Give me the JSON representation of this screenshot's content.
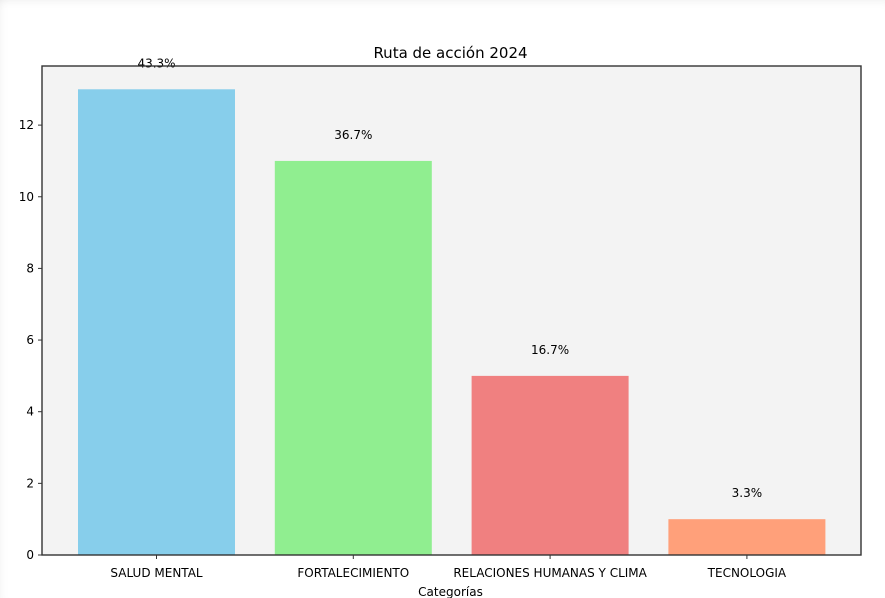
{
  "chart_data": {
    "type": "bar",
    "title": "Ruta de acción 2024",
    "xlabel": "Categorías",
    "ylabel": "",
    "categories": [
      "SALUD MENTAL",
      "FORTALECIMIENTO",
      "RELACIONES HUMANAS Y CLIMA",
      "TECNOLOGIA"
    ],
    "values": [
      13,
      11,
      5,
      1
    ],
    "data_labels": [
      "43.3%",
      "36.7%",
      "16.7%",
      "3.3%"
    ],
    "colors": [
      "#87ceeb",
      "#90ee90",
      "#f08080",
      "#ffa07a"
    ],
    "ylim": [
      0,
      13.65
    ],
    "yticks": [
      0,
      2,
      4,
      6,
      8,
      10,
      12
    ],
    "grid": false,
    "plot_background": "#f3f3f3"
  }
}
